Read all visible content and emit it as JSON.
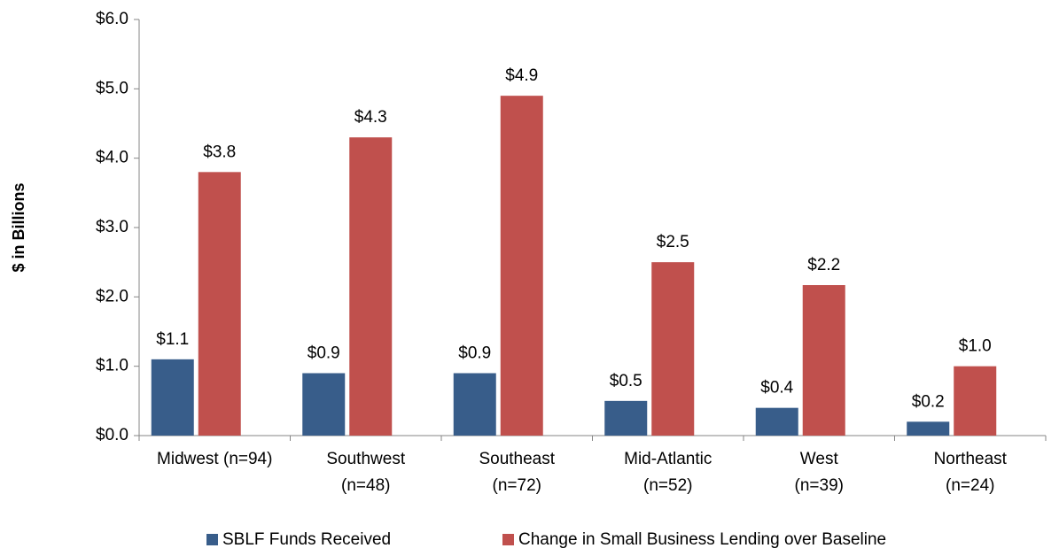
{
  "chart_data": {
    "type": "bar",
    "y_label": "$ in Billions",
    "categories": [
      "Midwest (n=94)",
      "Southwest\n(n=48)",
      "Southeast\n(n=72)",
      "Mid-Atlantic\n(n=52)",
      "West\n(n=39)",
      "Northeast\n(n=24)"
    ],
    "series": [
      {
        "name": "SBLF Funds Received",
        "color": "#385d8a",
        "values": [
          1.1,
          0.9,
          0.9,
          0.5,
          0.4,
          0.2
        ],
        "value_labels": [
          "$1.1",
          "$0.9",
          "$0.9",
          "$0.5",
          "$0.4",
          "$0.2"
        ]
      },
      {
        "name": "Change in Small Business Lending over Baseline",
        "color": "#c0504d",
        "values": [
          3.8,
          4.3,
          4.9,
          2.5,
          2.17,
          1.0
        ],
        "value_labels": [
          "$3.8",
          "$4.3",
          "$4.9",
          "$2.5",
          "$2.2",
          "$1.0"
        ]
      }
    ],
    "ylim": [
      0,
      6
    ],
    "yticks": [
      {
        "value": 0,
        "label": "$0.0"
      },
      {
        "value": 1,
        "label": "$1.0"
      },
      {
        "value": 2,
        "label": "$2.0"
      },
      {
        "value": 3,
        "label": "$3.0"
      },
      {
        "value": 4,
        "label": "$4.0"
      },
      {
        "value": 5,
        "label": "$5.0"
      },
      {
        "value": 6,
        "label": "$6.0"
      }
    ],
    "legend": "bottom"
  }
}
